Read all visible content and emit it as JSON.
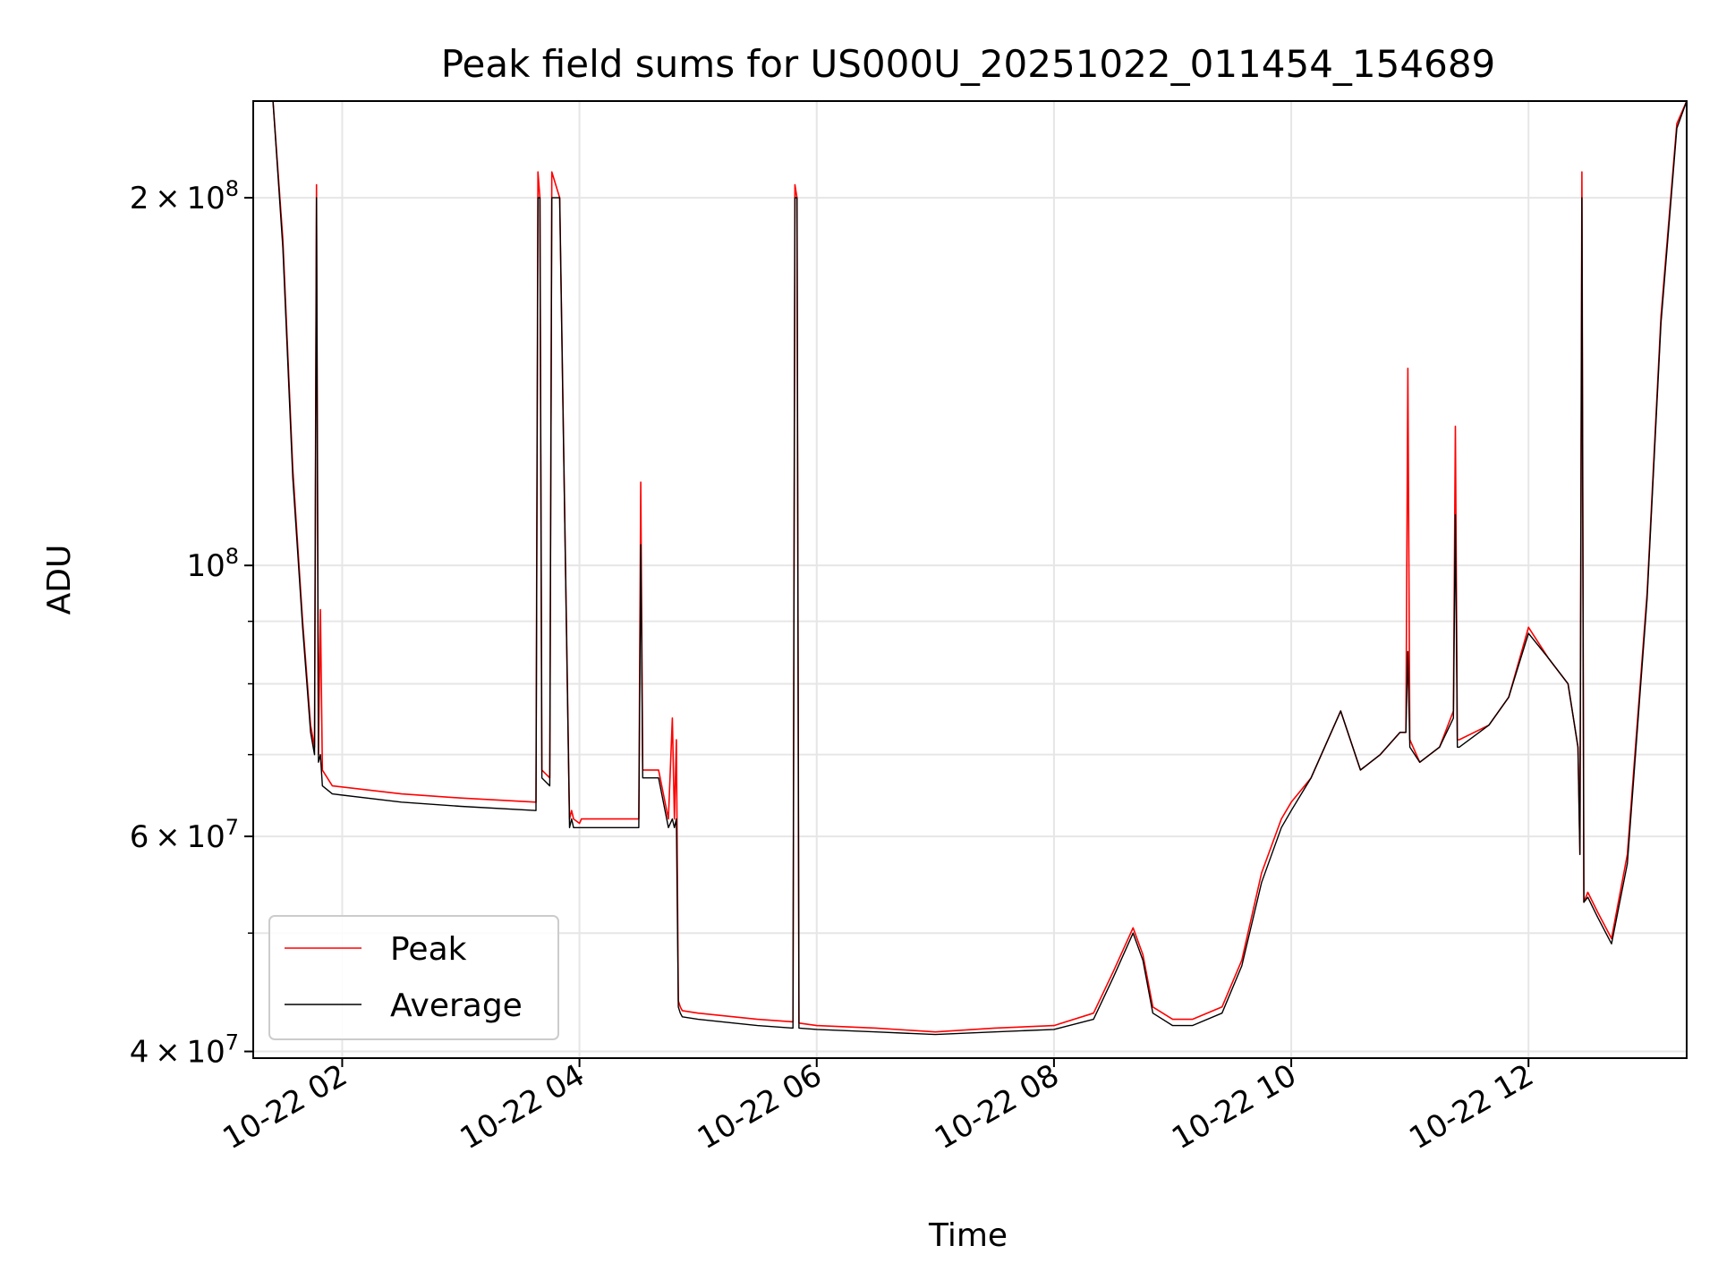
{
  "chart_data": {
    "type": "line",
    "title": "Peak field sums for US000U_20251022_011454_154689",
    "xlabel": "Time",
    "ylabel": "ADU",
    "yscale": "log",
    "ylim": [
      39500000,
      240000000
    ],
    "xlim": [
      "2025-10-22 01:15",
      "2025-10-22 13:20"
    ],
    "grid": true,
    "legend_position": "lower-left",
    "x_tick_labels": [
      "10-22 02",
      "10-22 04",
      "10-22 06",
      "10-22 08",
      "10-22 10",
      "10-22 12"
    ],
    "x_ticks": [
      "2025-10-22 02:00",
      "2025-10-22 04:00",
      "2025-10-22 06:00",
      "2025-10-22 08:00",
      "2025-10-22 10:00",
      "2025-10-22 12:00"
    ],
    "y_major_ticks": [
      {
        "value": 40000000,
        "mantissa": "4",
        "exponent": "7"
      },
      {
        "value": 60000000,
        "mantissa": "6",
        "exponent": "7"
      },
      {
        "value": 100000000,
        "mantissa": "",
        "exponent": "8"
      },
      {
        "value": 200000000,
        "mantissa": "2",
        "exponent": "8"
      }
    ],
    "y_minor_grid": [
      50000000,
      70000000,
      80000000,
      90000000
    ],
    "series": [
      {
        "name": "Peak",
        "color": "#ff0000",
        "x": [
          "2025-10-22 01:15",
          "2025-10-22 01:25",
          "2025-10-22 01:30",
          "2025-10-22 01:35",
          "2025-10-22 01:40",
          "2025-10-22 01:44",
          "2025-10-22 01:46",
          "2025-10-22 01:47",
          "2025-10-22 01:48",
          "2025-10-22 01:49",
          "2025-10-22 01:50",
          "2025-10-22 01:55",
          "2025-10-22 02:30",
          "2025-10-22 03:00",
          "2025-10-22 03:38",
          "2025-10-22 03:39",
          "2025-10-22 03:40",
          "2025-10-22 03:41",
          "2025-10-22 03:45",
          "2025-10-22 03:46",
          "2025-10-22 03:50",
          "2025-10-22 03:55",
          "2025-10-22 03:56",
          "2025-10-22 03:57",
          "2025-10-22 04:00",
          "2025-10-22 04:01",
          "2025-10-22 04:10",
          "2025-10-22 04:30",
          "2025-10-22 04:31",
          "2025-10-22 04:32",
          "2025-10-22 04:33",
          "2025-10-22 04:35",
          "2025-10-22 04:40",
          "2025-10-22 04:45",
          "2025-10-22 04:47",
          "2025-10-22 04:48",
          "2025-10-22 04:49",
          "2025-10-22 04:50",
          "2025-10-22 04:51",
          "2025-10-22 04:52",
          "2025-10-22 05:00",
          "2025-10-22 05:30",
          "2025-10-22 05:48",
          "2025-10-22 05:49",
          "2025-10-22 05:50",
          "2025-10-22 05:51",
          "2025-10-22 06:00",
          "2025-10-22 06:30",
          "2025-10-22 07:00",
          "2025-10-22 07:30",
          "2025-10-22 08:00",
          "2025-10-22 08:20",
          "2025-10-22 08:30",
          "2025-10-22 08:40",
          "2025-10-22 08:45",
          "2025-10-22 08:50",
          "2025-10-22 09:00",
          "2025-10-22 09:10",
          "2025-10-22 09:25",
          "2025-10-22 09:35",
          "2025-10-22 09:45",
          "2025-10-22 09:55",
          "2025-10-22 10:00",
          "2025-10-22 10:10",
          "2025-10-22 10:25",
          "2025-10-22 10:35",
          "2025-10-22 10:45",
          "2025-10-22 10:55",
          "2025-10-22 10:58",
          "2025-10-22 10:59",
          "2025-10-22 11:00",
          "2025-10-22 11:05",
          "2025-10-22 11:15",
          "2025-10-22 11:22",
          "2025-10-22 11:23",
          "2025-10-22 11:24",
          "2025-10-22 11:25",
          "2025-10-22 11:40",
          "2025-10-22 11:50",
          "2025-10-22 12:00",
          "2025-10-22 12:10",
          "2025-10-22 12:20",
          "2025-10-22 12:25",
          "2025-10-22 12:26",
          "2025-10-22 12:27",
          "2025-10-22 12:28",
          "2025-10-22 12:30",
          "2025-10-22 12:35",
          "2025-10-22 12:42",
          "2025-10-22 12:50",
          "2025-10-22 13:00",
          "2025-10-22 13:07",
          "2025-10-22 13:15",
          "2025-10-22 13:20"
        ],
        "y": [
          240000000,
          240000000,
          185000000,
          120000000,
          90000000,
          74000000,
          71000000,
          205000000,
          70000000,
          92000000,
          68000000,
          66000000,
          65000000,
          64500000,
          64000000,
          210000000,
          200000000,
          68000000,
          67000000,
          210000000,
          200000000,
          62000000,
          63000000,
          62000000,
          61500000,
          62000000,
          62000000,
          62000000,
          117000000,
          68000000,
          68000000,
          68000000,
          68000000,
          62000000,
          75000000,
          62000000,
          72000000,
          44000000,
          43500000,
          43200000,
          43000000,
          42500000,
          42300000,
          205000000,
          200000000,
          42200000,
          42000000,
          41800000,
          41500000,
          41800000,
          42000000,
          43000000,
          46500000,
          50500000,
          48000000,
          43500000,
          42500000,
          42500000,
          43500000,
          47500000,
          56000000,
          62000000,
          64000000,
          67000000,
          76000000,
          68000000,
          70000000,
          73000000,
          73000000,
          145000000,
          72000000,
          69000000,
          71000000,
          76000000,
          130000000,
          72000000,
          72000000,
          74000000,
          78000000,
          89000000,
          84000000,
          80000000,
          71000000,
          58000000,
          210000000,
          53000000,
          54000000,
          52000000,
          49500000,
          58000000,
          95000000,
          160000000,
          230000000,
          240000000
        ]
      },
      {
        "name": "Average",
        "color": "#000000",
        "x": [
          "2025-10-22 01:15",
          "2025-10-22 01:25",
          "2025-10-22 01:30",
          "2025-10-22 01:35",
          "2025-10-22 01:40",
          "2025-10-22 01:44",
          "2025-10-22 01:46",
          "2025-10-22 01:47",
          "2025-10-22 01:48",
          "2025-10-22 01:49",
          "2025-10-22 01:50",
          "2025-10-22 01:55",
          "2025-10-22 02:30",
          "2025-10-22 03:00",
          "2025-10-22 03:38",
          "2025-10-22 03:39",
          "2025-10-22 03:40",
          "2025-10-22 03:41",
          "2025-10-22 03:45",
          "2025-10-22 03:46",
          "2025-10-22 03:50",
          "2025-10-22 03:55",
          "2025-10-22 03:56",
          "2025-10-22 03:57",
          "2025-10-22 04:00",
          "2025-10-22 04:01",
          "2025-10-22 04:10",
          "2025-10-22 04:30",
          "2025-10-22 04:31",
          "2025-10-22 04:32",
          "2025-10-22 04:33",
          "2025-10-22 04:35",
          "2025-10-22 04:40",
          "2025-10-22 04:45",
          "2025-10-22 04:47",
          "2025-10-22 04:48",
          "2025-10-22 04:49",
          "2025-10-22 04:50",
          "2025-10-22 04:51",
          "2025-10-22 04:52",
          "2025-10-22 05:00",
          "2025-10-22 05:30",
          "2025-10-22 05:48",
          "2025-10-22 05:49",
          "2025-10-22 05:50",
          "2025-10-22 05:51",
          "2025-10-22 06:00",
          "2025-10-22 06:30",
          "2025-10-22 07:00",
          "2025-10-22 07:30",
          "2025-10-22 08:00",
          "2025-10-22 08:20",
          "2025-10-22 08:30",
          "2025-10-22 08:40",
          "2025-10-22 08:45",
          "2025-10-22 08:50",
          "2025-10-22 09:00",
          "2025-10-22 09:10",
          "2025-10-22 09:25",
          "2025-10-22 09:35",
          "2025-10-22 09:45",
          "2025-10-22 09:55",
          "2025-10-22 10:00",
          "2025-10-22 10:10",
          "2025-10-22 10:25",
          "2025-10-22 10:35",
          "2025-10-22 10:45",
          "2025-10-22 10:55",
          "2025-10-22 10:58",
          "2025-10-22 10:59",
          "2025-10-22 11:00",
          "2025-10-22 11:05",
          "2025-10-22 11:15",
          "2025-10-22 11:22",
          "2025-10-22 11:23",
          "2025-10-22 11:24",
          "2025-10-22 11:25",
          "2025-10-22 11:40",
          "2025-10-22 11:50",
          "2025-10-22 12:00",
          "2025-10-22 12:10",
          "2025-10-22 12:20",
          "2025-10-22 12:25",
          "2025-10-22 12:26",
          "2025-10-22 12:27",
          "2025-10-22 12:28",
          "2025-10-22 12:30",
          "2025-10-22 12:35",
          "2025-10-22 12:42",
          "2025-10-22 12:50",
          "2025-10-22 13:00",
          "2025-10-22 13:07",
          "2025-10-22 13:15",
          "2025-10-22 13:20"
        ],
        "y": [
          240000000,
          240000000,
          182000000,
          118000000,
          89000000,
          73000000,
          70000000,
          200000000,
          69000000,
          70000000,
          66000000,
          65000000,
          64000000,
          63500000,
          63000000,
          200000000,
          200000000,
          67000000,
          66000000,
          200000000,
          200000000,
          61000000,
          62000000,
          61000000,
          61000000,
          61000000,
          61000000,
          61000000,
          104000000,
          67000000,
          67000000,
          67000000,
          67000000,
          61000000,
          62000000,
          61000000,
          62000000,
          43500000,
          43000000,
          42700000,
          42500000,
          42000000,
          41800000,
          200000000,
          200000000,
          41800000,
          41700000,
          41500000,
          41300000,
          41500000,
          41700000,
          42500000,
          46000000,
          50000000,
          47500000,
          43000000,
          42000000,
          42000000,
          43000000,
          47000000,
          55000000,
          61000000,
          63000000,
          67000000,
          76000000,
          68000000,
          70000000,
          73000000,
          73000000,
          85000000,
          71000000,
          69000000,
          71000000,
          75000000,
          110000000,
          71000000,
          71000000,
          74000000,
          78000000,
          88000000,
          84000000,
          80000000,
          71000000,
          58000000,
          200000000,
          53000000,
          53500000,
          51500000,
          49000000,
          57000000,
          94000000,
          158000000,
          228000000,
          240000000
        ]
      }
    ]
  }
}
